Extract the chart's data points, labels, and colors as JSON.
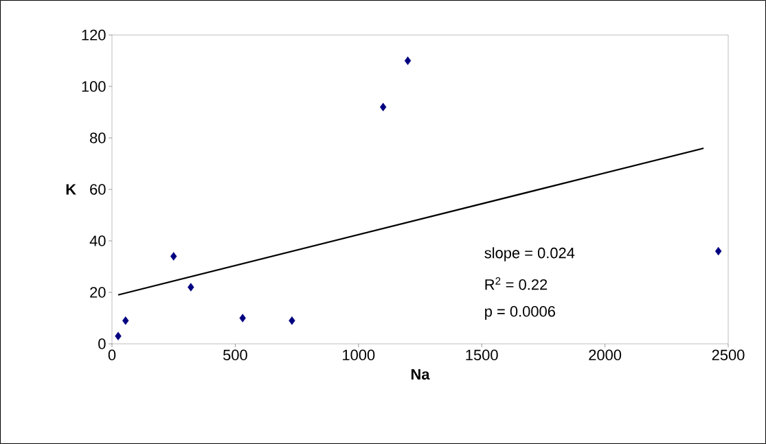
{
  "chart_data": {
    "type": "scatter",
    "xlabel": "Na",
    "ylabel": "K",
    "xlim": [
      0,
      2500
    ],
    "xticks": [
      0,
      500,
      1000,
      1500,
      2000,
      2500
    ],
    "ylim": [
      0,
      120
    ],
    "yticks": [
      0,
      20,
      40,
      60,
      80,
      100,
      120
    ],
    "grid": false,
    "series": [
      {
        "marker": "diamond",
        "color": "#000080",
        "x": [
          25,
          55,
          250,
          320,
          530,
          730,
          1100,
          1200,
          2460
        ],
        "values": [
          3,
          9,
          34,
          22,
          10,
          9,
          92,
          110,
          36
        ]
      },
      {
        "type": "line",
        "color": "#000000",
        "x": [
          25,
          2400
        ],
        "values": [
          19,
          76
        ]
      }
    ],
    "annotations": [
      "slope = 0.024",
      "R$^{2}$ = 0.22",
      "p = 0.0006"
    ]
  }
}
